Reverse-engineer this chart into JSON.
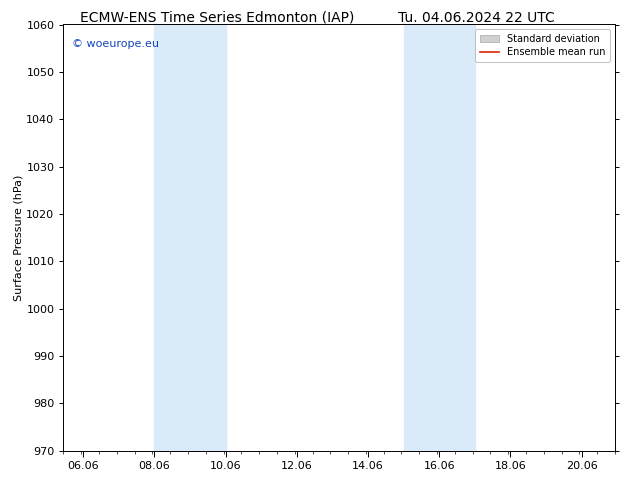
{
  "title_left": "ECMW-ENS Time Series Edmonton (IAP)",
  "title_right": "Tu. 04.06.2024 22 UTC",
  "ylabel": "Surface Pressure (hPa)",
  "ylim": [
    970,
    1060
  ],
  "yticks": [
    970,
    980,
    990,
    1000,
    1010,
    1020,
    1030,
    1040,
    1050,
    1060
  ],
  "xlim_start": 5.5,
  "xlim_end": 21.0,
  "xtick_positions": [
    6.06,
    8.06,
    10.06,
    12.06,
    14.06,
    16.06,
    18.06,
    20.06
  ],
  "xtick_labels": [
    "06.06",
    "08.06",
    "10.06",
    "12.06",
    "14.06",
    "16.06",
    "18.06",
    "20.06"
  ],
  "shaded_bands": [
    {
      "xmin": 8.06,
      "xmax": 10.06
    },
    {
      "xmin": 15.06,
      "xmax": 17.06
    }
  ],
  "shaded_color": "#dbeaf8",
  "watermark_text": "© woeurope.eu",
  "watermark_color": "#1144bb",
  "legend_std_label": "Standard deviation",
  "legend_ens_label": "Ensemble mean run",
  "legend_std_facecolor": "#d0d0d0",
  "legend_std_edgecolor": "#aaaaaa",
  "legend_ens_color": "#dd2200",
  "background_color": "#ffffff",
  "title_fontsize": 10,
  "ylabel_fontsize": 8,
  "tick_fontsize": 8,
  "legend_fontsize": 7,
  "watermark_fontsize": 8
}
